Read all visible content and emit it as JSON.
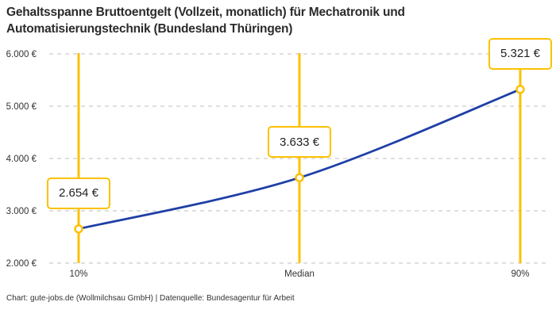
{
  "title_lines": [
    "Gehaltsspanne Bruttoentgelt (Vollzeit, monatlich) für Mechatronik und",
    "Automatisierungstechnik (Bundesland Thüringen)"
  ],
  "footer": "Chart: gute-jobs.de (Wollmilchsau GmbH) | Datenquelle: Bundesagentur für Arbeit",
  "chart_data": {
    "type": "line",
    "title": "Gehaltsspanne Bruttoentgelt (Vollzeit, monatlich) für Mechatronik und Automatisierungstechnik (Bundesland Thüringen)",
    "categories": [
      "10%",
      "Median",
      "90%"
    ],
    "values": [
      2654,
      3633,
      5321
    ],
    "value_labels": [
      "2.654 €",
      "3.633 €",
      "5.321 €"
    ],
    "y_ticks": [
      2000,
      3000,
      4000,
      5000,
      6000
    ],
    "y_tick_labels": [
      "2.000 €",
      "3.000 €",
      "4.000 €",
      "5.000 €",
      "6.000 €"
    ],
    "ylim": [
      2000,
      6000
    ],
    "xlabel": "",
    "ylabel": "",
    "grid": "horizontal-dashed",
    "legend": "none",
    "colors": {
      "line": "#1e3fa6",
      "highlight": "#fcc100",
      "grid": "#cccccc",
      "axis_text": "#333333",
      "marker_fill": "#ffffff",
      "box_text": "#222222"
    }
  }
}
